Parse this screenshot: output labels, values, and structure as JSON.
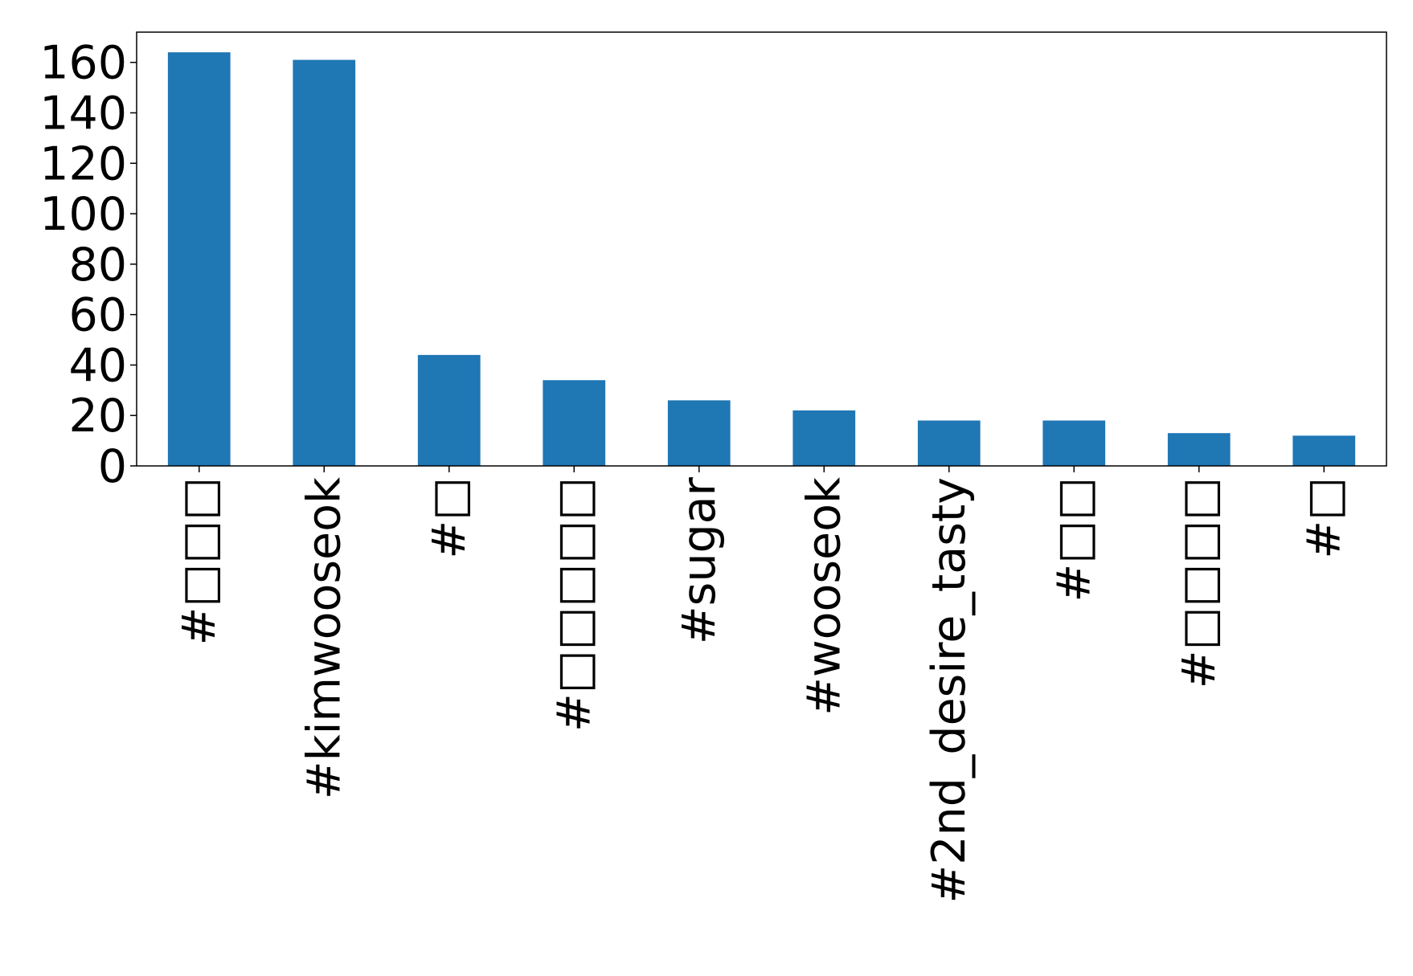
{
  "chart_data": {
    "type": "bar",
    "categories": [
      "#□□□",
      "#kimwooseok",
      "#□",
      "#□□□□□",
      "#sugar",
      "#wooseok",
      "#2nd_desire_tasty",
      "#□□",
      "#□□□□",
      "#□"
    ],
    "values": [
      164,
      161,
      44,
      34,
      26,
      22,
      18,
      18,
      13,
      12
    ],
    "ylim": [
      0,
      172
    ],
    "yticks": [
      0,
      20,
      40,
      60,
      80,
      100,
      120,
      140,
      160
    ],
    "bar_color": "#1f77b4",
    "grid": false,
    "legend": "none",
    "title": "",
    "xlabel": "",
    "ylabel": ""
  }
}
